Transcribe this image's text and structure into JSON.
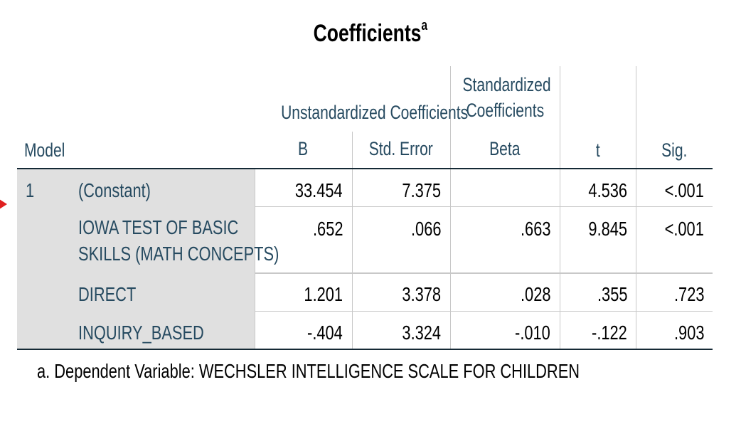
{
  "title": "Coefficients",
  "title_sup": "a",
  "headers": {
    "model": "Model",
    "unstd": "Unstandardized Coefficients",
    "std_line1": "Standardized",
    "std_line2": "Coefficients",
    "b": "B",
    "stderr": "Std. Error",
    "beta": "Beta",
    "t": "t",
    "sig": "Sig."
  },
  "model_number": "1",
  "rows": [
    {
      "label": [
        "(Constant)"
      ],
      "b": "33.454",
      "stderr": "7.375",
      "beta": "",
      "t": "4.536",
      "sig": "<.001"
    },
    {
      "label": [
        "IOWA TEST OF BASIC",
        "SKILLS (MATH CONCEPTS)"
      ],
      "b": ".652",
      "stderr": ".066",
      "beta": ".663",
      "t": "9.845",
      "sig": "<.001"
    },
    {
      "label": [
        "DIRECT"
      ],
      "b": "1.201",
      "stderr": "3.378",
      "beta": ".028",
      "t": ".355",
      "sig": ".723"
    },
    {
      "label": [
        "INQUIRY_BASED"
      ],
      "b": "-.404",
      "stderr": "3.324",
      "beta": "-.010",
      "t": "-.122",
      "sig": ".903"
    }
  ],
  "footnote": "a. Dependent Variable: WECHSLER INTELLIGENCE SCALE FOR CHILDREN",
  "colors": {
    "header_text": "#264a60",
    "label_shade": "#e0e0e0",
    "marker": "#e02020"
  }
}
